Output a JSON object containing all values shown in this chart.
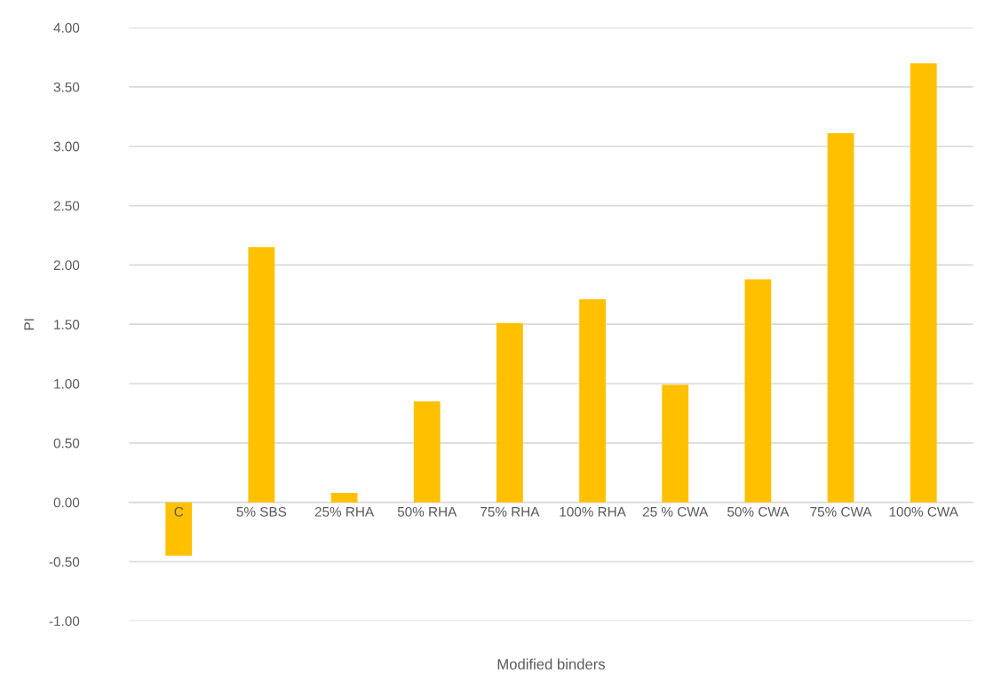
{
  "chart_data": {
    "type": "bar",
    "xlabel": "Modified binders",
    "ylabel": "PI",
    "categories": [
      "C",
      "5% SBS",
      "25% RHA",
      "50% RHA",
      "75% RHA",
      "100% RHA",
      "25 % CWA",
      "50% CWA",
      "75% CWA",
      "100% CWA"
    ],
    "values": [
      -0.45,
      2.15,
      0.08,
      0.85,
      1.51,
      1.71,
      0.99,
      1.88,
      3.11,
      3.7
    ],
    "color": "#ffc000",
    "ylim": [
      -1.0,
      4.0
    ],
    "yticks": [
      {
        "value": -1.0,
        "label": "-1.00"
      },
      {
        "value": -0.5,
        "label": "-0.50"
      },
      {
        "value": 0.0,
        "label": "0.00"
      },
      {
        "value": 0.5,
        "label": "0.50"
      },
      {
        "value": 1.0,
        "label": "1.00"
      },
      {
        "value": 1.5,
        "label": "1.50"
      },
      {
        "value": 2.0,
        "label": "2.00"
      },
      {
        "value": 2.5,
        "label": "2.50"
      },
      {
        "value": 3.0,
        "label": "3.00"
      },
      {
        "value": 3.5,
        "label": "3.50"
      },
      {
        "value": 4.0,
        "label": "4.00"
      }
    ],
    "grid": "y"
  }
}
